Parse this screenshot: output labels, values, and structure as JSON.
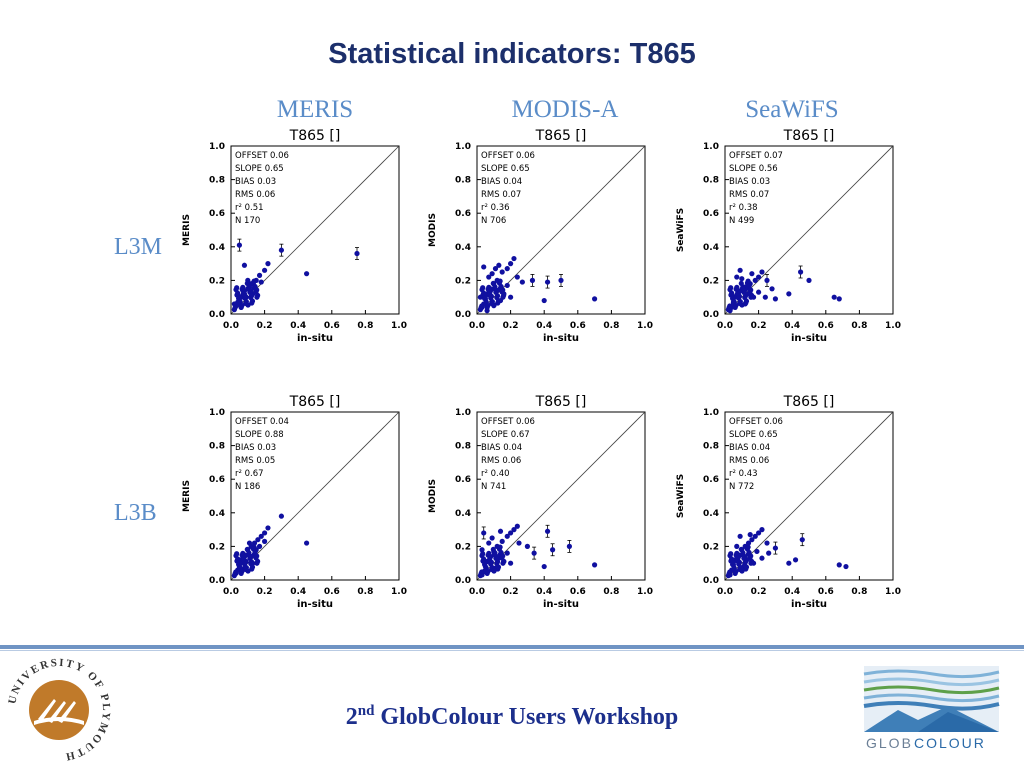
{
  "slide": {
    "title": "Statistical indicators: T865",
    "columns": [
      "MERIS",
      "MODIS-A",
      "SeaWiFS"
    ],
    "rows": [
      "L3M",
      "L3B"
    ],
    "footer_main": "GlobColour Users Workshop",
    "footer_num": "2",
    "footer_sup": "nd",
    "uni_logo_text": "UNIVERSITY OF PLYMOUTH",
    "brand_glob": "GLOB",
    "brand_colour": "COLOUR",
    "brand_color_navy": "#1c2f8c",
    "brand_color_blue": "#5a8cc8",
    "point_color": "#1010a0"
  },
  "chart_data": [
    {
      "type": "scatter",
      "row": "L3M",
      "sensor": "MERIS",
      "title": "T865 []",
      "xlabel": "in-situ",
      "ylabel": "MERIS",
      "xlim": [
        0,
        1
      ],
      "ylim": [
        0,
        1
      ],
      "ticks": [
        "0.0",
        "0.2",
        "0.4",
        "0.6",
        "0.8",
        "1.0"
      ],
      "stats": [
        "OFFSET  0.06",
        "SLOPE  0.65",
        "BIAS  0.03",
        "RMS 0.06",
        "r² 0.51",
        "N  170"
      ],
      "points": [
        [
          0.05,
          0.41
        ],
        [
          0.3,
          0.38
        ],
        [
          0.75,
          0.36
        ],
        [
          0.45,
          0.24
        ],
        [
          0.08,
          0.29
        ],
        [
          0.22,
          0.3
        ],
        [
          0.2,
          0.26
        ],
        [
          0.17,
          0.23
        ],
        [
          0.15,
          0.2
        ],
        [
          0.12,
          0.18
        ],
        [
          0.1,
          0.15
        ],
        [
          0.08,
          0.12
        ],
        [
          0.06,
          0.1
        ],
        [
          0.04,
          0.07
        ],
        [
          0.03,
          0.05
        ],
        [
          0.07,
          0.14
        ],
        [
          0.11,
          0.16
        ],
        [
          0.13,
          0.12
        ],
        [
          0.05,
          0.08
        ],
        [
          0.09,
          0.1
        ],
        [
          0.14,
          0.16
        ],
        [
          0.06,
          0.04
        ],
        [
          0.02,
          0.06
        ],
        [
          0.1,
          0.2
        ],
        [
          0.18,
          0.19
        ]
      ],
      "error_points": [
        0,
        1,
        2
      ]
    },
    {
      "type": "scatter",
      "row": "L3M",
      "sensor": "MODIS-A",
      "title": "T865 []",
      "xlabel": "in-situ",
      "ylabel": "MODIS",
      "xlim": [
        0,
        1
      ],
      "ylim": [
        0,
        1
      ],
      "ticks": [
        "0.0",
        "0.2",
        "0.4",
        "0.6",
        "0.8",
        "1.0"
      ],
      "stats": [
        "OFFSET  0.06",
        "SLOPE  0.65",
        "BIAS  0.04",
        "RMS 0.07",
        "r² 0.36",
        "N  706"
      ],
      "points": [
        [
          0.7,
          0.09
        ],
        [
          0.5,
          0.2
        ],
        [
          0.42,
          0.19
        ],
        [
          0.4,
          0.08
        ],
        [
          0.33,
          0.2
        ],
        [
          0.22,
          0.33
        ],
        [
          0.2,
          0.3
        ],
        [
          0.18,
          0.27
        ],
        [
          0.15,
          0.25
        ],
        [
          0.12,
          0.2
        ],
        [
          0.1,
          0.18
        ],
        [
          0.08,
          0.15
        ],
        [
          0.06,
          0.12
        ],
        [
          0.05,
          0.09
        ],
        [
          0.04,
          0.06
        ],
        [
          0.03,
          0.04
        ],
        [
          0.07,
          0.22
        ],
        [
          0.09,
          0.24
        ],
        [
          0.12,
          0.14
        ],
        [
          0.16,
          0.12
        ],
        [
          0.2,
          0.1
        ],
        [
          0.14,
          0.08
        ],
        [
          0.06,
          0.02
        ],
        [
          0.1,
          0.05
        ],
        [
          0.11,
          0.27
        ],
        [
          0.04,
          0.28
        ],
        [
          0.18,
          0.17
        ],
        [
          0.24,
          0.22
        ],
        [
          0.02,
          0.1
        ],
        [
          0.13,
          0.29
        ],
        [
          0.27,
          0.19
        ]
      ],
      "error_points": [
        1,
        2,
        4
      ]
    },
    {
      "type": "scatter",
      "row": "L3M",
      "sensor": "SeaWiFS",
      "title": "T865 []",
      "xlabel": "in-situ",
      "ylabel": "SeaWiFS",
      "xlim": [
        0,
        1
      ],
      "ylim": [
        0,
        1
      ],
      "ticks": [
        "0.0",
        "0.2",
        "0.4",
        "0.6",
        "0.8",
        "1.0"
      ],
      "stats": [
        "OFFSET  0.07",
        "SLOPE  0.56",
        "BIAS  0.03",
        "RMS 0.07",
        "r² 0.38",
        "N  499"
      ],
      "points": [
        [
          0.68,
          0.09
        ],
        [
          0.65,
          0.1
        ],
        [
          0.45,
          0.25
        ],
        [
          0.5,
          0.2
        ],
        [
          0.38,
          0.12
        ],
        [
          0.3,
          0.09
        ],
        [
          0.25,
          0.2
        ],
        [
          0.22,
          0.25
        ],
        [
          0.2,
          0.22
        ],
        [
          0.18,
          0.2
        ],
        [
          0.15,
          0.18
        ],
        [
          0.12,
          0.16
        ],
        [
          0.1,
          0.14
        ],
        [
          0.08,
          0.12
        ],
        [
          0.06,
          0.1
        ],
        [
          0.05,
          0.07
        ],
        [
          0.04,
          0.04
        ],
        [
          0.03,
          0.02
        ],
        [
          0.07,
          0.22
        ],
        [
          0.1,
          0.21
        ],
        [
          0.14,
          0.12
        ],
        [
          0.17,
          0.1
        ],
        [
          0.12,
          0.06
        ],
        [
          0.28,
          0.15
        ],
        [
          0.09,
          0.26
        ],
        [
          0.16,
          0.24
        ],
        [
          0.2,
          0.13
        ],
        [
          0.24,
          0.1
        ]
      ],
      "error_points": [
        2,
        6
      ]
    },
    {
      "type": "scatter",
      "row": "L3B",
      "sensor": "MERIS",
      "title": "T865 []",
      "xlabel": "in-situ",
      "ylabel": "MERIS",
      "xlim": [
        0,
        1
      ],
      "ylim": [
        0,
        1
      ],
      "ticks": [
        "0.0",
        "0.2",
        "0.4",
        "0.6",
        "0.8",
        "1.0"
      ],
      "stats": [
        "OFFSET  0.04",
        "SLOPE  0.88",
        "BIAS  0.03",
        "RMS 0.05",
        "r² 0.67",
        "N  186"
      ],
      "points": [
        [
          0.3,
          0.38
        ],
        [
          0.45,
          0.22
        ],
        [
          0.22,
          0.31
        ],
        [
          0.2,
          0.28
        ],
        [
          0.18,
          0.26
        ],
        [
          0.16,
          0.24
        ],
        [
          0.14,
          0.22
        ],
        [
          0.12,
          0.2
        ],
        [
          0.1,
          0.18
        ],
        [
          0.08,
          0.15
        ],
        [
          0.07,
          0.13
        ],
        [
          0.06,
          0.1
        ],
        [
          0.05,
          0.08
        ],
        [
          0.04,
          0.06
        ],
        [
          0.03,
          0.04
        ],
        [
          0.09,
          0.11
        ],
        [
          0.12,
          0.14
        ],
        [
          0.15,
          0.18
        ],
        [
          0.11,
          0.22
        ],
        [
          0.17,
          0.2
        ],
        [
          0.05,
          0.12
        ],
        [
          0.08,
          0.07
        ],
        [
          0.13,
          0.1
        ],
        [
          0.2,
          0.23
        ]
      ],
      "error_points": []
    },
    {
      "type": "scatter",
      "row": "L3B",
      "sensor": "MODIS-A",
      "title": "T865 []",
      "xlabel": "in-situ",
      "ylabel": "MODIS",
      "xlim": [
        0,
        1
      ],
      "ylim": [
        0,
        1
      ],
      "ticks": [
        "0.0",
        "0.2",
        "0.4",
        "0.6",
        "0.8",
        "1.0"
      ],
      "stats": [
        "OFFSET  0.06",
        "SLOPE  0.67",
        "BIAS  0.04",
        "RMS 0.06",
        "r² 0.40",
        "N  741"
      ],
      "points": [
        [
          0.7,
          0.09
        ],
        [
          0.55,
          0.2
        ],
        [
          0.45,
          0.18
        ],
        [
          0.42,
          0.29
        ],
        [
          0.4,
          0.08
        ],
        [
          0.34,
          0.16
        ],
        [
          0.3,
          0.2
        ],
        [
          0.24,
          0.32
        ],
        [
          0.22,
          0.3
        ],
        [
          0.2,
          0.28
        ],
        [
          0.18,
          0.26
        ],
        [
          0.15,
          0.23
        ],
        [
          0.12,
          0.2
        ],
        [
          0.1,
          0.17
        ],
        [
          0.08,
          0.14
        ],
        [
          0.06,
          0.11
        ],
        [
          0.05,
          0.08
        ],
        [
          0.04,
          0.05
        ],
        [
          0.03,
          0.03
        ],
        [
          0.07,
          0.22
        ],
        [
          0.04,
          0.28
        ],
        [
          0.09,
          0.25
        ],
        [
          0.13,
          0.13
        ],
        [
          0.16,
          0.11
        ],
        [
          0.2,
          0.1
        ],
        [
          0.11,
          0.07
        ],
        [
          0.14,
          0.29
        ],
        [
          0.25,
          0.22
        ],
        [
          0.03,
          0.18
        ],
        [
          0.18,
          0.16
        ]
      ],
      "error_points": [
        1,
        2,
        3,
        5,
        20
      ]
    },
    {
      "type": "scatter",
      "row": "L3B",
      "sensor": "SeaWiFS",
      "title": "T865 []",
      "xlabel": "in-situ",
      "ylabel": "SeaWiFS",
      "xlim": [
        0,
        1
      ],
      "ylim": [
        0,
        1
      ],
      "ticks": [
        "0.0",
        "0.2",
        "0.4",
        "0.6",
        "0.8",
        "1.0"
      ],
      "stats": [
        "OFFSET  0.06",
        "SLOPE  0.65",
        "BIAS  0.04",
        "RMS 0.06",
        "r² 0.43",
        "N  772"
      ],
      "points": [
        [
          0.68,
          0.09
        ],
        [
          0.72,
          0.08
        ],
        [
          0.46,
          0.24
        ],
        [
          0.42,
          0.12
        ],
        [
          0.38,
          0.1
        ],
        [
          0.3,
          0.19
        ],
        [
          0.26,
          0.16
        ],
        [
          0.22,
          0.3
        ],
        [
          0.2,
          0.28
        ],
        [
          0.18,
          0.26
        ],
        [
          0.16,
          0.24
        ],
        [
          0.14,
          0.22
        ],
        [
          0.12,
          0.2
        ],
        [
          0.1,
          0.18
        ],
        [
          0.08,
          0.15
        ],
        [
          0.06,
          0.12
        ],
        [
          0.05,
          0.09
        ],
        [
          0.04,
          0.06
        ],
        [
          0.03,
          0.03
        ],
        [
          0.09,
          0.26
        ],
        [
          0.13,
          0.12
        ],
        [
          0.17,
          0.1
        ],
        [
          0.22,
          0.13
        ],
        [
          0.25,
          0.22
        ],
        [
          0.11,
          0.08
        ],
        [
          0.07,
          0.2
        ],
        [
          0.15,
          0.27
        ],
        [
          0.19,
          0.17
        ]
      ],
      "error_points": [
        2,
        5
      ]
    }
  ]
}
